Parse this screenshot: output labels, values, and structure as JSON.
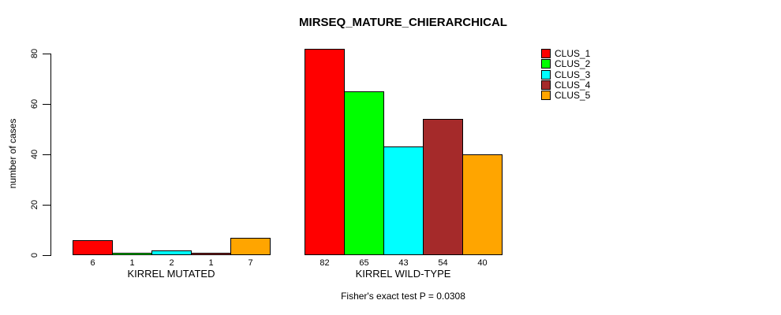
{
  "chart_data": {
    "type": "bar",
    "title": "MIRSEQ_MATURE_CHIERARCHICAL",
    "xlabel": "",
    "ylabel": "number of cases",
    "ylim": [
      0,
      80
    ],
    "yticks": [
      0,
      20,
      40,
      60,
      80
    ],
    "grid": false,
    "legend_position": "top-right-inside",
    "categories": [
      "KIRREL MUTATED",
      "KIRREL WILD-TYPE"
    ],
    "series": [
      {
        "name": "CLUS_1",
        "color": "#FF0000",
        "values": [
          6,
          82
        ]
      },
      {
        "name": "CLUS_2",
        "color": "#00FF00",
        "values": [
          1,
          65
        ]
      },
      {
        "name": "CLUS_3",
        "color": "#00FFFF",
        "values": [
          2,
          43
        ]
      },
      {
        "name": "CLUS_4",
        "color": "#A52A2A",
        "values": [
          1,
          54
        ]
      },
      {
        "name": "CLUS_5",
        "color": "#FFA500",
        "values": [
          7,
          40
        ]
      }
    ],
    "bar_value_labels": [
      [
        "6",
        "1",
        "2",
        "1",
        "7"
      ],
      [
        "82",
        "65",
        "43",
        "54",
        "40"
      ]
    ],
    "annotation": "Fisher's exact test P = 0.0308",
    "colors": {
      "background": "#FFFFFF",
      "axis": "#000000",
      "bar_border": "#000000",
      "text": "#000000"
    }
  }
}
